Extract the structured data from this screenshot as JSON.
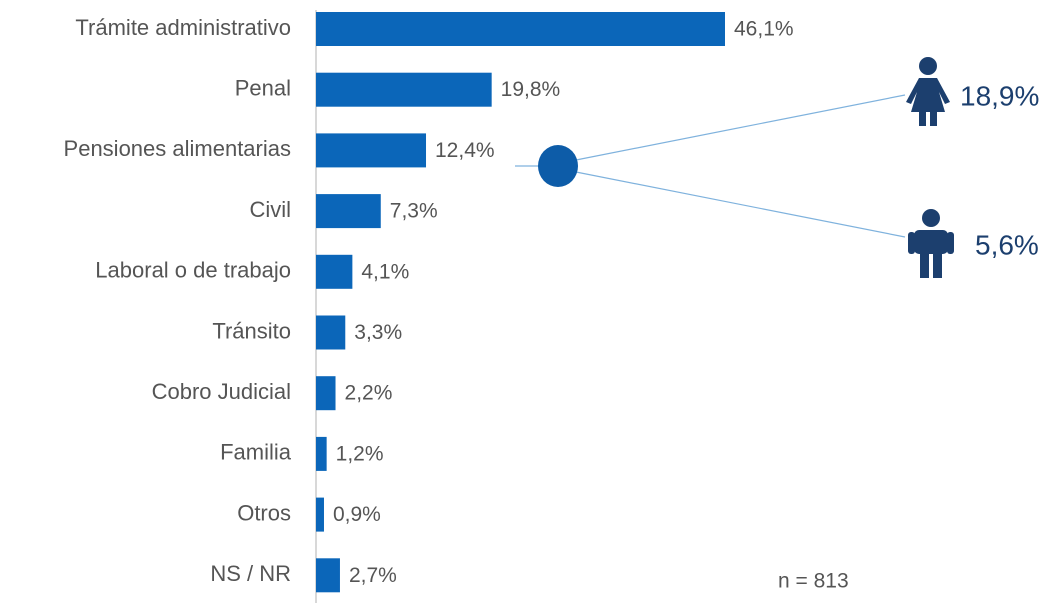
{
  "chart_data": {
    "type": "bar",
    "orientation": "horizontal",
    "categories": [
      "Trámite administrativo",
      "Penal",
      "Pensiones alimentarias",
      "Civil",
      "Laboral o de trabajo",
      "Tránsito",
      "Cobro Judicial",
      "Familia",
      "Otros",
      "NS / NR"
    ],
    "values": [
      46.1,
      19.8,
      12.4,
      7.3,
      4.1,
      3.3,
      2.2,
      1.2,
      0.9,
      2.7
    ],
    "value_labels": [
      "46,1%",
      "19,8%",
      "12,4%",
      "7,3%",
      "4,1%",
      "3,3%",
      "2,2%",
      "1,2%",
      "0,9%",
      "2,7%"
    ],
    "color": "#0b66b9",
    "annotation": {
      "values": [
        18.9,
        5.6
      ],
      "value_labels": [
        "18,9%",
        "5,6%"
      ]
    },
    "note": "n = 813"
  }
}
